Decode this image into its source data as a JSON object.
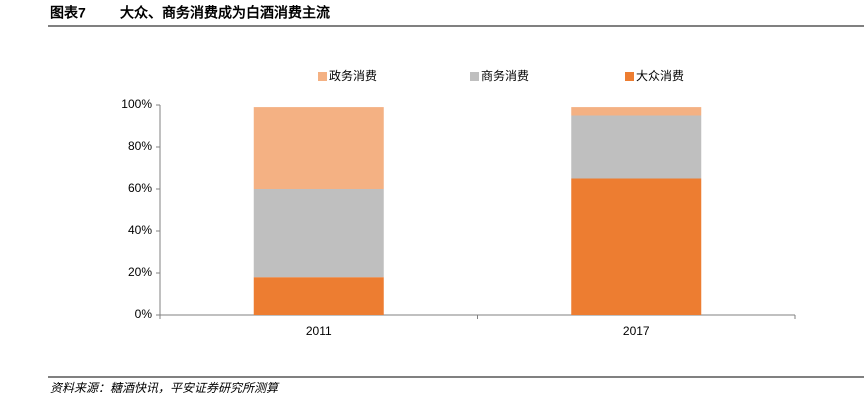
{
  "chart_data": {
    "type": "stacked_bar",
    "figure_label": "图表7",
    "title": "大众、商务消费成为白酒消费主流",
    "source": "资料来源：糖酒快讯，平安证券研究所测算",
    "categories": [
      "2011",
      "2017"
    ],
    "series": [
      {
        "name": "大众消费",
        "color": "#ED7D31",
        "values": [
          18,
          65
        ]
      },
      {
        "name": "商务消费",
        "color": "#BFBFBF",
        "values": [
          42,
          30
        ]
      },
      {
        "name": "政务消费",
        "color": "#F4B183",
        "values": [
          39,
          4
        ]
      }
    ],
    "ylim": [
      0,
      100
    ],
    "yticks": [
      {
        "value": 0,
        "label": "0%"
      },
      {
        "value": 20,
        "label": "20%"
      },
      {
        "value": 40,
        "label": "40%"
      },
      {
        "value": 60,
        "label": "60%"
      },
      {
        "value": 80,
        "label": "80%"
      },
      {
        "value": 100,
        "label": "100%"
      }
    ],
    "legend": "top"
  }
}
